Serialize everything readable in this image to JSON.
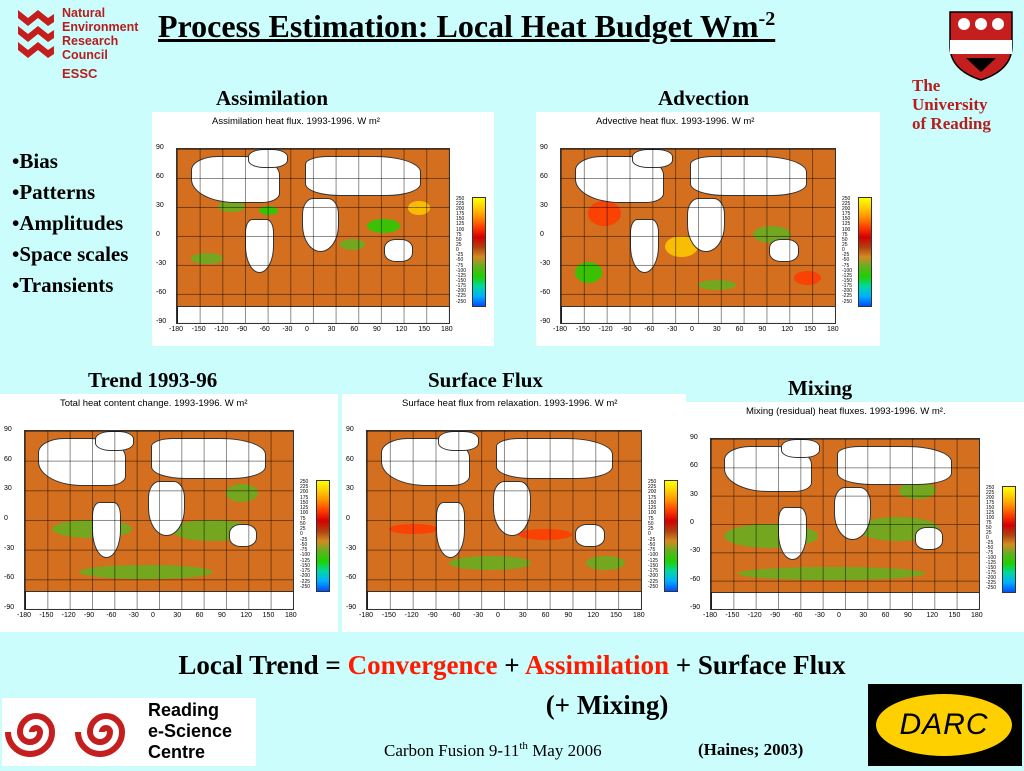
{
  "title": {
    "main": "Process Estimation: Local Heat Budget Wm",
    "sup": "-2"
  },
  "logos": {
    "nerc_lines": [
      "Natural",
      "Environment",
      "Research",
      "Council"
    ],
    "essc": "ESSC",
    "uor_lines": [
      "The",
      "University",
      "of Reading"
    ],
    "resc_lines": [
      "Reading",
      "e-Science",
      "Centre"
    ],
    "darc": "DARC"
  },
  "bullets": [
    "•Bias",
    "•Patterns",
    "•Amplitudes",
    "•Space scales",
    "•Transients"
  ],
  "panels": {
    "assimilation": {
      "label": "Assimilation",
      "map_title": "Assimilation heat flux. 1993-1996.  W m²"
    },
    "advection": {
      "label": "Advection",
      "map_title": "Advective heat flux.  1993-1996.  W m²"
    },
    "trend": {
      "label": "Trend 1993-96",
      "map_title": "Total heat content change.  1993-1996.  W m²"
    },
    "surface": {
      "label": "Surface Flux",
      "map_title": "Surface heat flux from relaxation.  1993-1996.  W m²"
    },
    "mixing": {
      "label": "Mixing",
      "map_title": "Mixing (residual) heat fluxes.  1993-1996.  W m²."
    }
  },
  "axes": {
    "lat_ticks": [
      "90",
      "60",
      "30",
      "0",
      "-30",
      "-60",
      "-90"
    ],
    "lon_ticks": [
      "-180",
      "-150",
      "-120",
      "-90",
      "-60",
      "-30",
      "0",
      "30",
      "60",
      "90",
      "120",
      "150",
      "180"
    ],
    "cbar_ticks": [
      "250",
      "225",
      "200",
      "175",
      "150",
      "125",
      "100",
      "75",
      "50",
      "25",
      "0",
      "-25",
      "-50",
      "-75",
      "-100",
      "-125",
      "-150",
      "-175",
      "-200",
      "-225",
      "-250"
    ]
  },
  "equation": {
    "part1": "Local Trend = ",
    "convergence": "Convergence",
    "plus1": " + ",
    "assimilation": "Assimilation",
    "part2": " + Surface Flux",
    "line2": "(+ Mixing)"
  },
  "footer": {
    "text1": "Carbon Fusion 9-11",
    "sup": "th",
    "text2": " May 2006",
    "reference": "(Haines; 2003)"
  },
  "colors": {
    "title_red": "#b41e1e",
    "accent_red": "#ff1a00",
    "background": "#ccfdfd"
  }
}
